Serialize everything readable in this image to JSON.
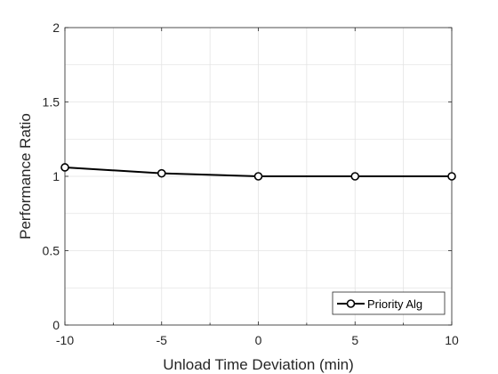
{
  "chart_data": {
    "type": "line",
    "xlabel": "Unload Time Deviation (min)",
    "ylabel": "Performance Ratio",
    "xlim": [
      -10,
      10
    ],
    "ylim": [
      0,
      2
    ],
    "xticks": [
      -10,
      -5,
      0,
      5,
      10
    ],
    "yticks": [
      0,
      0.5,
      1,
      1.5,
      2
    ],
    "xtick_labels": [
      "-10",
      "-5",
      "0",
      "5",
      "10"
    ],
    "ytick_labels": [
      "0",
      "0.5",
      "1",
      "1.5",
      "2"
    ],
    "grid": true,
    "legend_position": "bottom-right",
    "series": [
      {
        "name": "Priority Alg",
        "color": "#000000",
        "marker": "circle",
        "x": [
          -10,
          -5,
          0,
          5,
          10
        ],
        "y": [
          1.06,
          1.02,
          1.0,
          1.0,
          1.0
        ]
      }
    ]
  }
}
